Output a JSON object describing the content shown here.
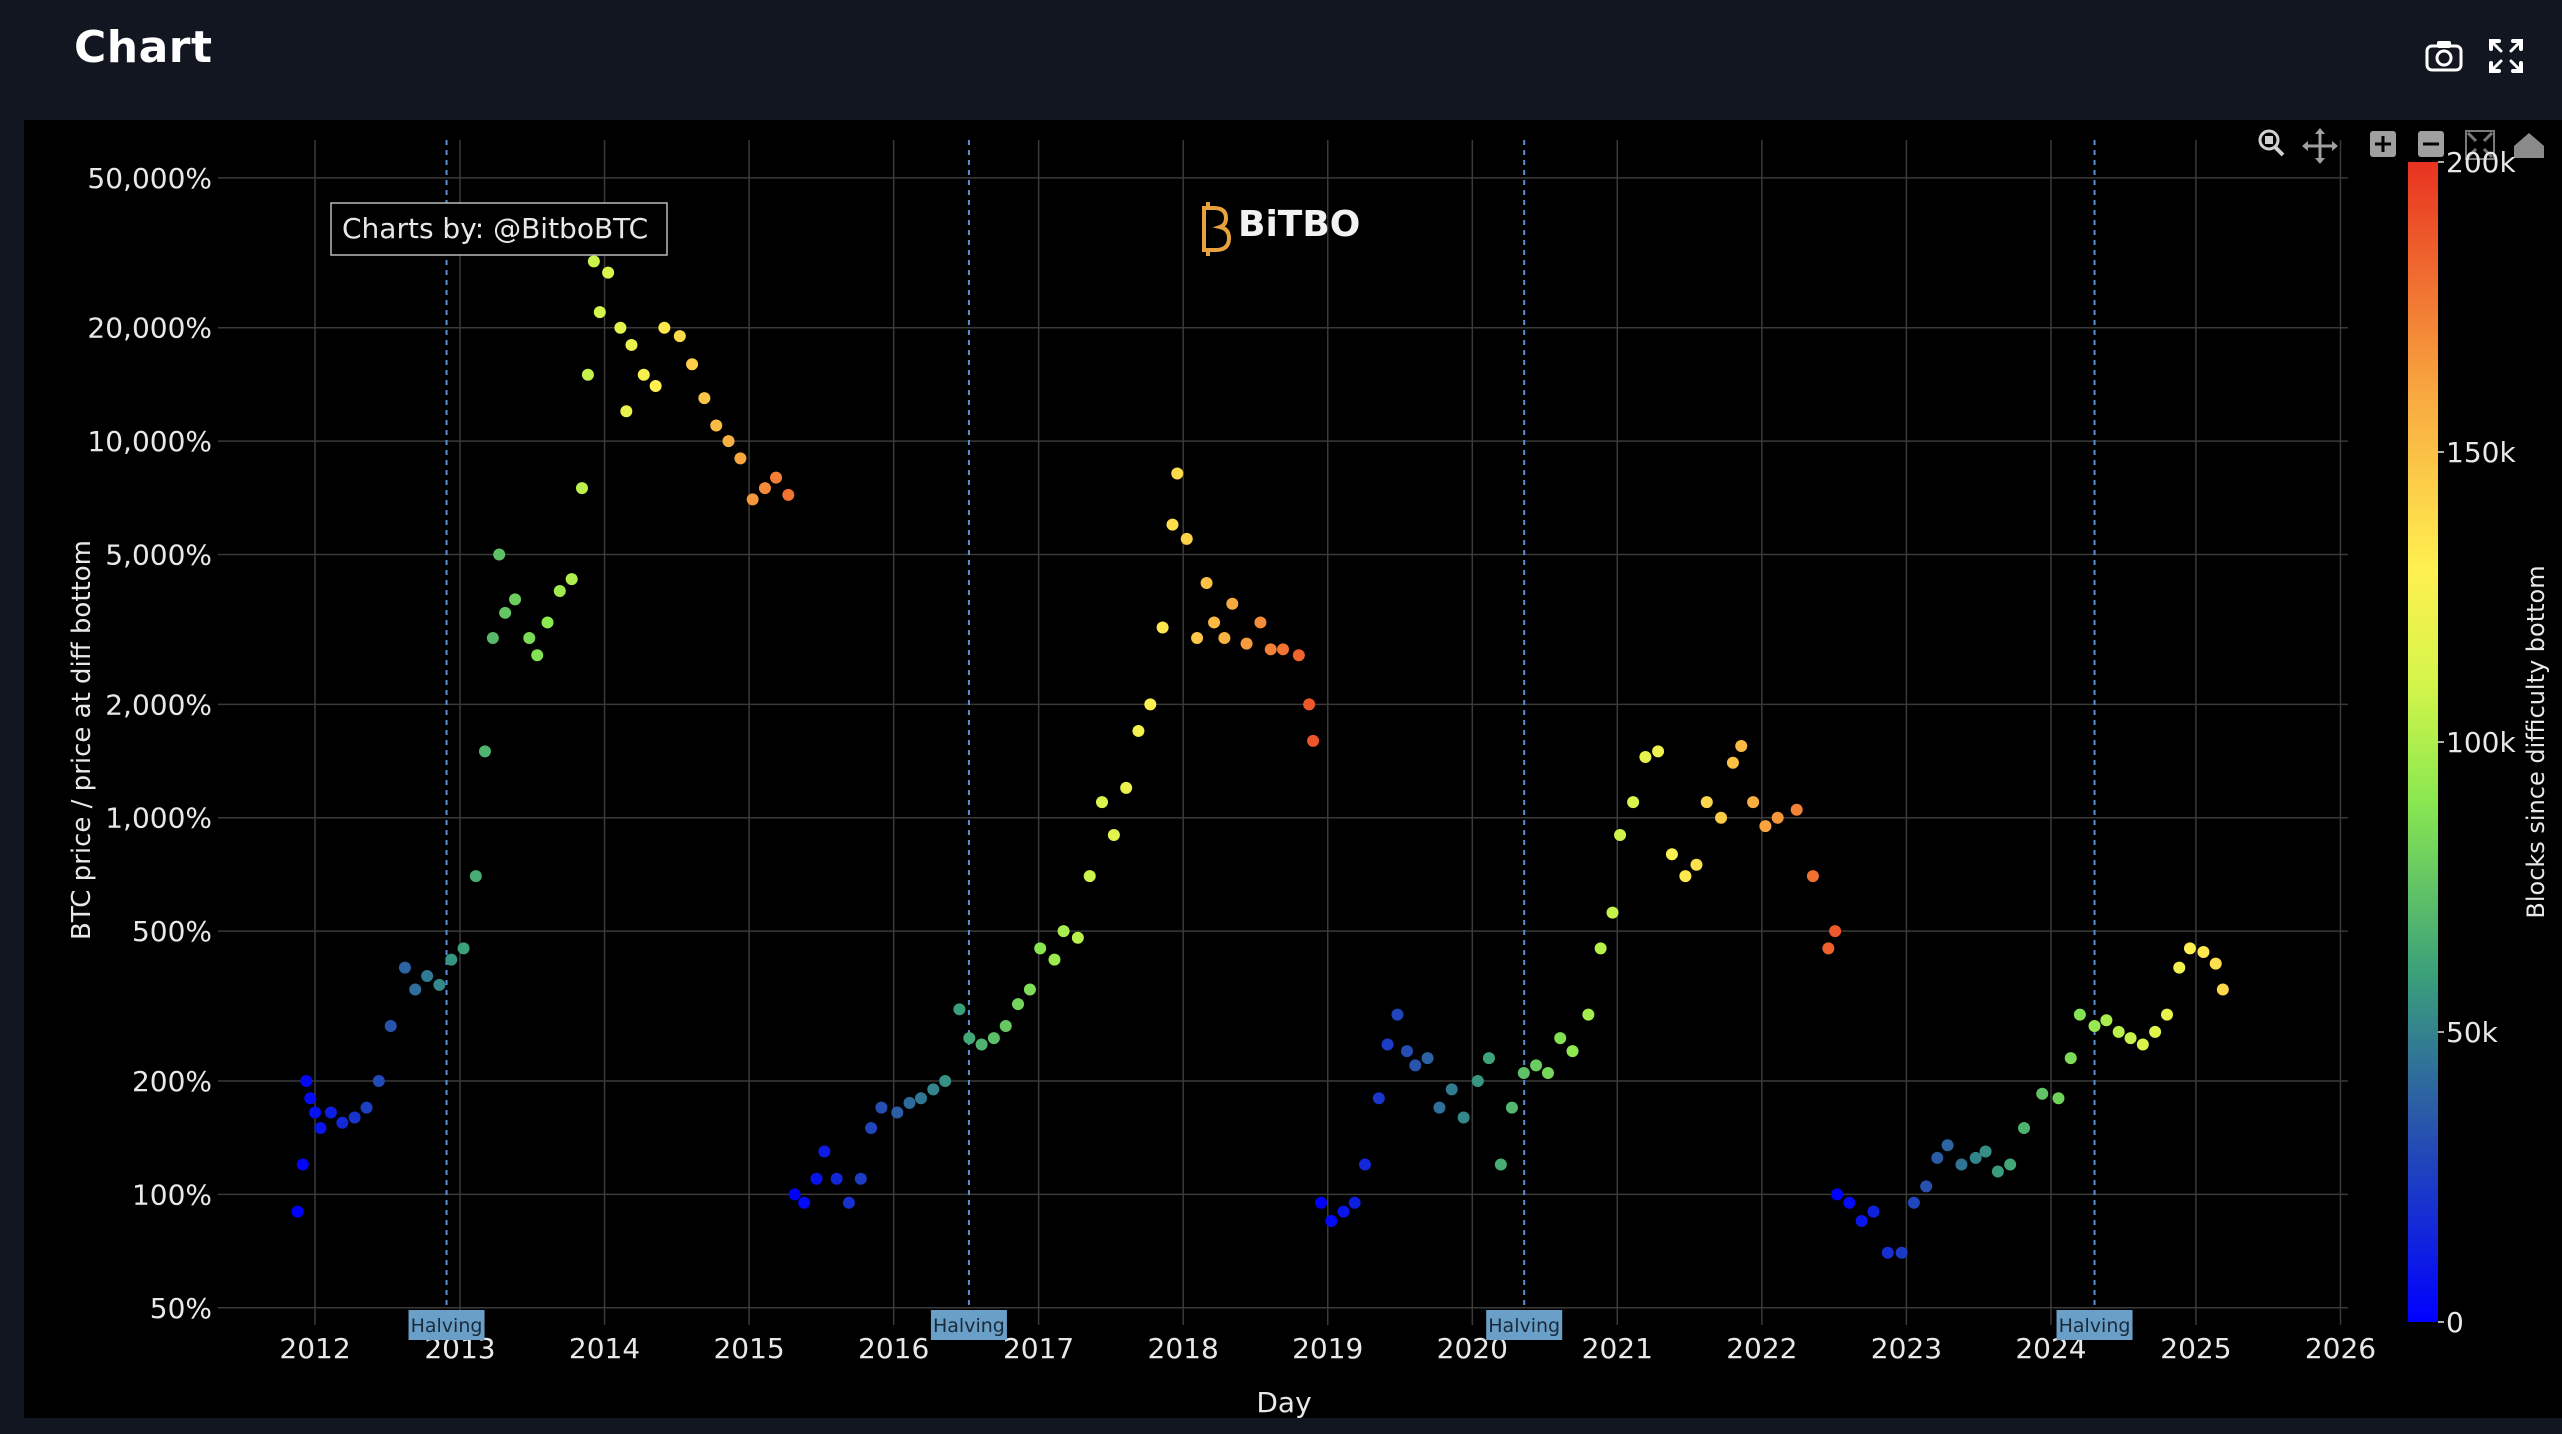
{
  "header": {
    "title": "Chart",
    "icons": [
      "camera-icon",
      "fullscreen-icon"
    ]
  },
  "toolbar": {
    "icons": [
      "zoom-icon",
      "pan-icon",
      "zoom-in-icon",
      "zoom-out-icon",
      "autoscale-icon",
      "home-icon"
    ]
  },
  "watermark": {
    "credit": "Charts by: @BitboBTC",
    "logo_text": "BiTBO"
  },
  "colors": {
    "background": "#000000",
    "page": "#121621",
    "grid": "#3a3a3a",
    "halving_line": "#5b8fd6",
    "halving_badge": "#6aa0c8",
    "logo": "#e8a13c",
    "colorscale": [
      "#0000ff",
      "#2c6e8e",
      "#4cbb64",
      "#b8f04a",
      "#fff050",
      "#f8a840",
      "#e83220"
    ]
  },
  "chart_data": {
    "type": "scatter",
    "title": "",
    "xlabel": "Day",
    "ylabel": "BTC price / price at diff bottom",
    "y_scale": "log",
    "ylim": [
      45,
      60000
    ],
    "xlim": [
      "2011-05-01",
      "2026-01-20"
    ],
    "x_ticks": [
      "2012",
      "2013",
      "2014",
      "2015",
      "2016",
      "2017",
      "2018",
      "2019",
      "2020",
      "2021",
      "2022",
      "2023",
      "2024",
      "2025",
      "2026"
    ],
    "y_ticks": [
      {
        "value": 50,
        "label": "50%"
      },
      {
        "value": 100,
        "label": "100%"
      },
      {
        "value": 200,
        "label": "200%"
      },
      {
        "value": 500,
        "label": "500%"
      },
      {
        "value": 1000,
        "label": "1,000%"
      },
      {
        "value": 2000,
        "label": "2,000%"
      },
      {
        "value": 5000,
        "label": "5,000%"
      },
      {
        "value": 10000,
        "label": "10,000%"
      },
      {
        "value": 20000,
        "label": "20,000%"
      },
      {
        "value": 50000,
        "label": "50,000%"
      }
    ],
    "grid": true,
    "colorbar": {
      "title": "Blocks since difficulty bottom",
      "range": [
        0,
        200000
      ],
      "ticks": [
        {
          "value": 0,
          "label": "0"
        },
        {
          "value": 50000,
          "label": "50k"
        },
        {
          "value": 100000,
          "label": "100k"
        },
        {
          "value": 150000,
          "label": "150k"
        },
        {
          "value": 200000,
          "label": "200k"
        }
      ]
    },
    "halvings": [
      {
        "date": "2012-11-28",
        "label": "Halving"
      },
      {
        "date": "2016-07-09",
        "label": "Halving"
      },
      {
        "date": "2020-05-11",
        "label": "Halving"
      },
      {
        "date": "2024-04-20",
        "label": "Halving"
      }
    ],
    "cycles": [
      {
        "start": "2011-11-18",
        "points": [
          [
            "2011-11-18",
            90
          ],
          [
            "2011-12-01",
            120
          ],
          [
            "2011-12-10",
            200
          ],
          [
            "2011-12-20",
            180
          ],
          [
            "2012-01-01",
            165
          ],
          [
            "2012-01-15",
            150
          ],
          [
            "2012-02-10",
            165
          ],
          [
            "2012-03-10",
            155
          ],
          [
            "2012-04-10",
            160
          ],
          [
            "2012-05-10",
            170
          ],
          [
            "2012-06-10",
            200
          ],
          [
            "2012-07-10",
            280
          ],
          [
            "2012-08-15",
            400
          ],
          [
            "2012-09-10",
            350
          ],
          [
            "2012-10-10",
            380
          ],
          [
            "2012-11-10",
            360
          ],
          [
            "2012-12-10",
            420
          ],
          [
            "2013-01-10",
            450
          ],
          [
            "2013-02-10",
            700
          ],
          [
            "2013-03-05",
            1500
          ],
          [
            "2013-03-25",
            3000
          ],
          [
            "2013-04-10",
            5000
          ],
          [
            "2013-04-25",
            3500
          ],
          [
            "2013-05-20",
            3800
          ],
          [
            "2013-06-25",
            3000
          ],
          [
            "2013-07-15",
            2700
          ],
          [
            "2013-08-10",
            3300
          ],
          [
            "2013-09-10",
            4000
          ],
          [
            "2013-10-10",
            4300
          ],
          [
            "2013-11-05",
            7500
          ],
          [
            "2013-11-20",
            15000
          ],
          [
            "2013-12-05",
            30000
          ],
          [
            "2013-12-20",
            22000
          ],
          [
            "2014-01-10",
            28000
          ],
          [
            "2014-02-10",
            20000
          ],
          [
            "2014-02-25",
            12000
          ],
          [
            "2014-03-10",
            18000
          ],
          [
            "2014-04-10",
            15000
          ],
          [
            "2014-05-10",
            14000
          ],
          [
            "2014-06-01",
            20000
          ],
          [
            "2014-07-10",
            19000
          ],
          [
            "2014-08-10",
            16000
          ],
          [
            "2014-09-10",
            13000
          ],
          [
            "2014-10-10",
            11000
          ],
          [
            "2014-11-10",
            10000
          ],
          [
            "2014-12-10",
            9000
          ],
          [
            "2015-01-10",
            7000
          ],
          [
            "2015-02-10",
            7500
          ],
          [
            "2015-03-10",
            8000
          ],
          [
            "2015-04-10",
            7200
          ]
        ]
      },
      {
        "start": "2015-04-26",
        "points": [
          [
            "2015-04-26",
            100
          ],
          [
            "2015-05-20",
            95
          ],
          [
            "2015-06-20",
            110
          ],
          [
            "2015-07-10",
            130
          ],
          [
            "2015-08-10",
            110
          ],
          [
            "2015-09-10",
            95
          ],
          [
            "2015-10-10",
            110
          ],
          [
            "2015-11-05",
            150
          ],
          [
            "2015-12-01",
            170
          ],
          [
            "2016-01-10",
            165
          ],
          [
            "2016-02-10",
            175
          ],
          [
            "2016-03-10",
            180
          ],
          [
            "2016-04-10",
            190
          ],
          [
            "2016-05-10",
            200
          ],
          [
            "2016-06-15",
            310
          ],
          [
            "2016-07-10",
            260
          ],
          [
            "2016-08-10",
            250
          ],
          [
            "2016-09-10",
            260
          ],
          [
            "2016-10-10",
            280
          ],
          [
            "2016-11-10",
            320
          ],
          [
            "2016-12-10",
            350
          ],
          [
            "2017-01-05",
            450
          ],
          [
            "2017-02-10",
            420
          ],
          [
            "2017-03-05",
            500
          ],
          [
            "2017-04-10",
            480
          ],
          [
            "2017-05-10",
            700
          ],
          [
            "2017-06-10",
            1100
          ],
          [
            "2017-07-10",
            900
          ],
          [
            "2017-08-10",
            1200
          ],
          [
            "2017-09-10",
            1700
          ],
          [
            "2017-10-10",
            2000
          ],
          [
            "2017-11-10",
            3200
          ],
          [
            "2017-12-05",
            6000
          ],
          [
            "2017-12-17",
            8200
          ],
          [
            "2018-01-10",
            5500
          ],
          [
            "2018-02-05",
            3000
          ],
          [
            "2018-03-01",
            4200
          ],
          [
            "2018-03-20",
            3300
          ],
          [
            "2018-04-15",
            3000
          ],
          [
            "2018-05-05",
            3700
          ],
          [
            "2018-06-10",
            2900
          ],
          [
            "2018-07-15",
            3300
          ],
          [
            "2018-08-10",
            2800
          ],
          [
            "2018-09-10",
            2800
          ],
          [
            "2018-10-20",
            2700
          ],
          [
            "2018-11-15",
            2000
          ],
          [
            "2018-11-25",
            1600
          ]
        ]
      },
      {
        "start": "2018-12-15",
        "points": [
          [
            "2018-12-15",
            95
          ],
          [
            "2019-01-10",
            85
          ],
          [
            "2019-02-10",
            90
          ],
          [
            "2019-03-10",
            95
          ],
          [
            "2019-04-05",
            120
          ],
          [
            "2019-05-10",
            180
          ],
          [
            "2019-06-01",
            250
          ],
          [
            "2019-06-26",
            300
          ],
          [
            "2019-07-20",
            240
          ],
          [
            "2019-08-10",
            220
          ],
          [
            "2019-09-10",
            230
          ],
          [
            "2019-10-10",
            170
          ],
          [
            "2019-11-10",
            190
          ],
          [
            "2019-12-10",
            160
          ],
          [
            "2020-01-15",
            200
          ],
          [
            "2020-02-12",
            230
          ],
          [
            "2020-03-13",
            120
          ],
          [
            "2020-04-10",
            170
          ],
          [
            "2020-05-10",
            210
          ],
          [
            "2020-06-10",
            220
          ],
          [
            "2020-07-10",
            210
          ],
          [
            "2020-08-10",
            260
          ],
          [
            "2020-09-10",
            240
          ],
          [
            "2020-10-20",
            300
          ],
          [
            "2020-11-20",
            450
          ],
          [
            "2020-12-20",
            560
          ],
          [
            "2021-01-08",
            900
          ],
          [
            "2021-02-10",
            1100
          ],
          [
            "2021-03-13",
            1450
          ],
          [
            "2021-04-14",
            1500
          ],
          [
            "2021-05-19",
            800
          ],
          [
            "2021-06-22",
            700
          ],
          [
            "2021-07-20",
            750
          ],
          [
            "2021-08-15",
            1100
          ],
          [
            "2021-09-20",
            1000
          ],
          [
            "2021-10-20",
            1400
          ],
          [
            "2021-11-10",
            1550
          ],
          [
            "2021-12-10",
            1100
          ],
          [
            "2022-01-10",
            950
          ],
          [
            "2022-02-10",
            1000
          ],
          [
            "2022-03-30",
            1050
          ],
          [
            "2022-05-10",
            700
          ],
          [
            "2022-06-18",
            450
          ],
          [
            "2022-07-05",
            500
          ]
        ]
      },
      {
        "start": "2022-07-10",
        "points": [
          [
            "2022-07-10",
            100
          ],
          [
            "2022-08-10",
            95
          ],
          [
            "2022-09-10",
            85
          ],
          [
            "2022-10-10",
            90
          ],
          [
            "2022-11-15",
            70
          ],
          [
            "2022-12-20",
            70
          ],
          [
            "2023-01-20",
            95
          ],
          [
            "2023-02-20",
            105
          ],
          [
            "2023-03-20",
            125
          ],
          [
            "2023-04-15",
            135
          ],
          [
            "2023-05-20",
            120
          ],
          [
            "2023-06-25",
            125
          ],
          [
            "2023-07-20",
            130
          ],
          [
            "2023-08-20",
            115
          ],
          [
            "2023-09-20",
            120
          ],
          [
            "2023-10-25",
            150
          ],
          [
            "2023-12-10",
            185
          ],
          [
            "2024-01-20",
            180
          ],
          [
            "2024-02-20",
            230
          ],
          [
            "2024-03-14",
            300
          ],
          [
            "2024-04-20",
            280
          ],
          [
            "2024-05-20",
            290
          ],
          [
            "2024-06-20",
            270
          ],
          [
            "2024-07-20",
            260
          ],
          [
            "2024-08-20",
            250
          ],
          [
            "2024-09-20",
            270
          ],
          [
            "2024-10-20",
            300
          ],
          [
            "2024-11-20",
            400
          ],
          [
            "2024-12-17",
            450
          ],
          [
            "2025-01-20",
            440
          ],
          [
            "2025-02-20",
            410
          ],
          [
            "2025-03-10",
            350
          ]
        ]
      }
    ]
  }
}
